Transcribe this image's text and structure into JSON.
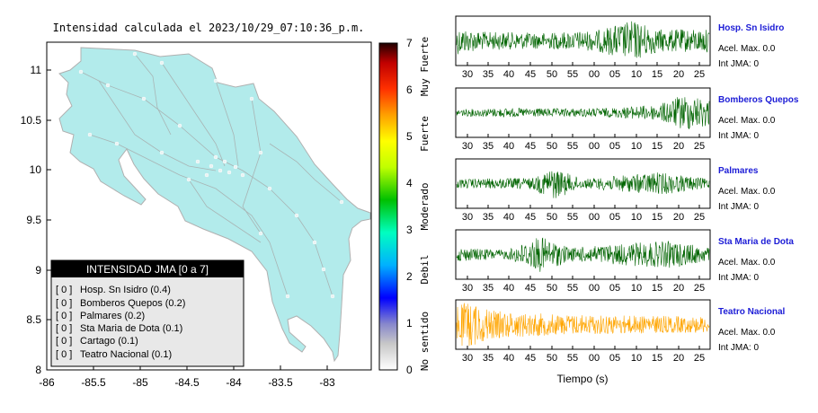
{
  "map": {
    "title": "Intensidad calculada el 2023/10/29_07:10:36_p.m.",
    "x_ticks": [
      "-86",
      "-85.5",
      "-85",
      "-84.5",
      "-84",
      "-83.5",
      "-83"
    ],
    "y_ticks": [
      "11",
      "10.5",
      "10",
      "9.5",
      "9",
      "8.5",
      "8"
    ],
    "land_color": "#b2ebeb"
  },
  "legend": {
    "title": "INTENSIDAD JMA [0 a 7]",
    "items": [
      {
        "value": "[ 0 ]",
        "label": "Hosp. Sn Isidro (0.4)"
      },
      {
        "value": "[ 0 ]",
        "label": "Bomberos Quepos (0.2)"
      },
      {
        "value": "[ 0 ]",
        "label": "Palmares (0.2)"
      },
      {
        "value": "[ 0 ]",
        "label": "Sta Maria de Dota (0.1)"
      },
      {
        "value": "[ 0 ]",
        "label": "Cartago (0.1)"
      },
      {
        "value": "[ 0 ]",
        "label": "Teatro Nacional (0.1)"
      }
    ]
  },
  "colorbar": {
    "ticks": [
      "7",
      "6",
      "5",
      "4",
      "3",
      "2",
      "1",
      "0"
    ],
    "categories": [
      "Muy Fuerte",
      "Fuerte",
      "Moderado",
      "Debil",
      "No sentido"
    ]
  },
  "waveforms": {
    "xlabel": "Tiempo (s)",
    "ticks": [
      "30",
      "35",
      "40",
      "45",
      "50",
      "55",
      "00",
      "05",
      "10",
      "15",
      "20",
      "25"
    ],
    "stations": [
      {
        "name": "Hosp. Sn Isidro",
        "accel": "Acel. Max. 0.0",
        "jma": "Int JMA: 0",
        "color": "#006400"
      },
      {
        "name": "Bomberos Quepos",
        "accel": "Acel. Max. 0.0",
        "jma": "Int JMA: 0",
        "color": "#006400"
      },
      {
        "name": "Palmares",
        "accel": "Acel. Max. 0.0",
        "jma": "Int JMA: 0",
        "color": "#006400"
      },
      {
        "name": "Sta Maria de Dota",
        "accel": "Acel. Max. 0.0",
        "jma": "Int JMA: 0",
        "color": "#006400"
      },
      {
        "name": "Teatro Nacional",
        "accel": "Acel. Max. 0.0",
        "jma": "Int JMA: 0",
        "color": "#ffa500"
      }
    ]
  }
}
